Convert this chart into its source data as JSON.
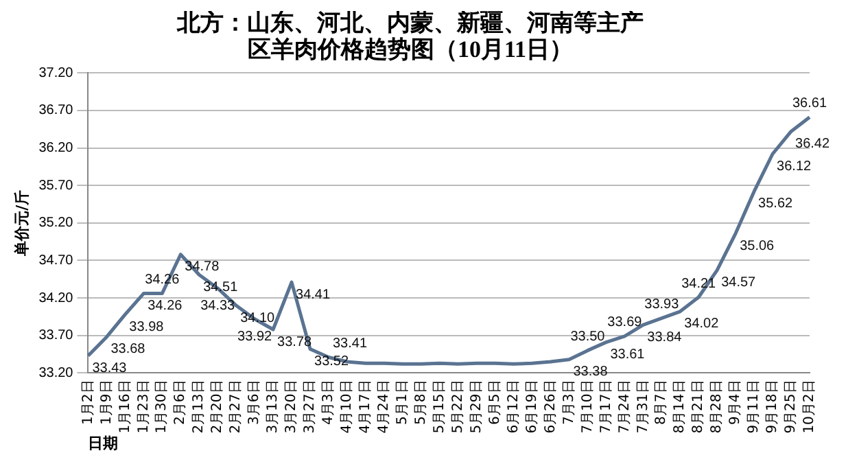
{
  "chart_data": {
    "type": "line",
    "title": [
      "北方：山东、河北、内蒙、新疆、河南等主产",
      "区羊肉价格趋势图（10月11日）"
    ],
    "xlabel": "日期",
    "ylabel": "单价元/斤",
    "categories": [
      "1月2日",
      "1月9日",
      "1月16日",
      "1月23日",
      "1月30日",
      "2月6日",
      "2月13日",
      "2月20日",
      "2月27日",
      "3月6日",
      "3月13日",
      "3月20日",
      "3月27日",
      "4月3日",
      "4月10日",
      "4月17日",
      "4月24日",
      "5月1日",
      "5月8日",
      "5月15日",
      "5月22日",
      "5月29日",
      "6月5日",
      "6月12日",
      "6月19日",
      "6月26日",
      "7月3日",
      "7月10日",
      "7月17日",
      "7月24日",
      "7月31日",
      "8月7日",
      "8月14日",
      "8月21日",
      "8月28日",
      "9月4日",
      "9月11日",
      "9月18日",
      "9月25日",
      "10月2日"
    ],
    "series": [
      {
        "color": "#5a7391",
        "values": [
          33.43,
          33.68,
          33.98,
          34.26,
          34.26,
          34.78,
          34.51,
          34.33,
          34.1,
          33.92,
          33.78,
          34.41,
          33.52,
          33.41,
          33.35,
          33.33,
          33.33,
          33.32,
          33.32,
          33.33,
          33.32,
          33.33,
          33.33,
          33.32,
          33.33,
          33.35,
          33.38,
          33.5,
          33.61,
          33.69,
          33.84,
          33.93,
          34.02,
          34.21,
          34.57,
          35.06,
          35.62,
          36.12,
          36.42,
          36.61
        ],
        "value_labels": [
          "33.43",
          "33.68",
          "33.98",
          "34.26",
          "34.26",
          "34.78",
          "34.51",
          "34.33",
          "34.10",
          "33.92",
          "33.78",
          "34.41",
          "33.52",
          "33.41",
          null,
          null,
          null,
          null,
          null,
          null,
          null,
          null,
          null,
          null,
          null,
          null,
          "33.38",
          "33.50",
          "33.61",
          "33.69",
          "33.84",
          "33.93",
          "34.02",
          "34.21",
          "34.57",
          "35.06",
          "35.62",
          "36.12",
          "36.42",
          "36.61"
        ]
      }
    ],
    "ylim": [
      33.2,
      37.2
    ],
    "yticks": [
      {
        "value": 33.2,
        "label": "33.20"
      },
      {
        "value": 33.7,
        "label": "33.70"
      },
      {
        "value": 34.2,
        "label": "34.20"
      },
      {
        "value": 34.7,
        "label": "34.70"
      },
      {
        "value": 35.2,
        "label": "35.20"
      },
      {
        "value": 35.7,
        "label": "35.70"
      },
      {
        "value": 36.2,
        "label": "36.20"
      },
      {
        "value": 36.7,
        "label": "36.70"
      },
      {
        "value": 37.2,
        "label": "37.20"
      }
    ],
    "grid": "y",
    "legend": false,
    "marker": "none",
    "line_style": "solid"
  }
}
